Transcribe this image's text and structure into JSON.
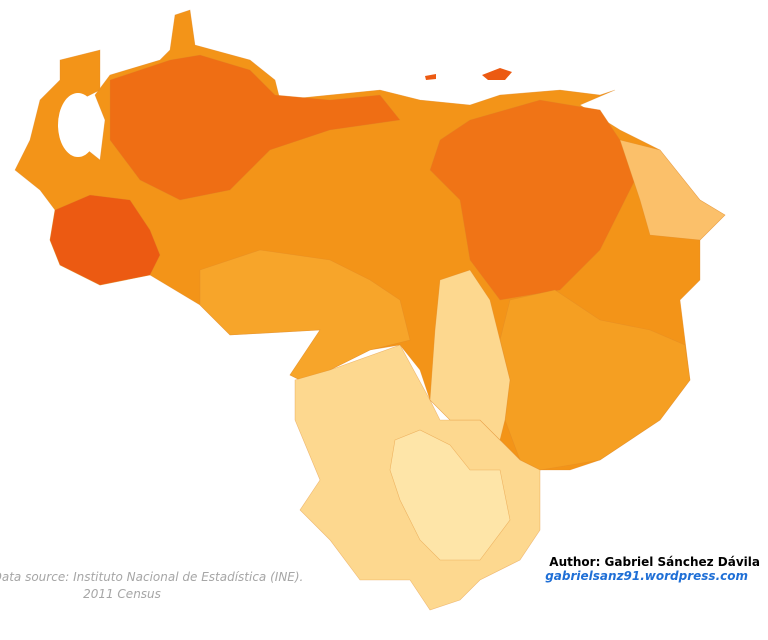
{
  "source": {
    "line1": "Data source: Instituto Nacional de Estadística (INE).",
    "line2": "2011 Census"
  },
  "author": {
    "name": "Author: Gabriel Sánchez Dávila",
    "website": "gabrielsanz91.wordpress.com"
  }
}
